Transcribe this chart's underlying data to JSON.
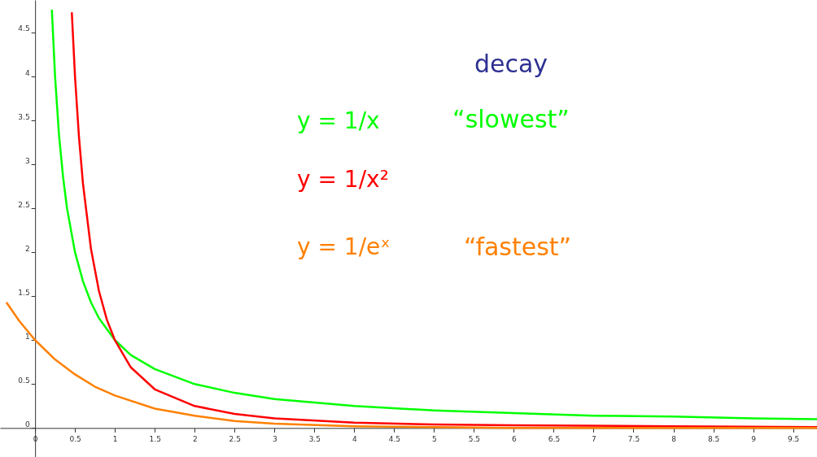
{
  "chart_data": {
    "type": "line",
    "xlim": [
      -0.44,
      9.8
    ],
    "ylim": [
      -0.33,
      4.87
    ],
    "xticks": [
      {
        "value": 0,
        "label": "0"
      },
      0.5,
      1,
      1.5,
      2,
      2.5,
      3,
      3.5,
      4,
      4.5,
      5,
      5.5,
      6,
      6.5,
      7,
      7.5,
      8,
      8.5,
      9,
      9.5
    ],
    "yticks": [
      0,
      0.5,
      1,
      1.5,
      2,
      2.5,
      3,
      3.5,
      4,
      4.5
    ],
    "grid": false,
    "line_style": "solid",
    "marker": "none",
    "series": [
      {
        "name": "y = 1/x",
        "color": "#00ff00",
        "x": [
          0.21,
          0.25,
          0.3,
          0.35,
          0.4,
          0.5,
          0.6,
          0.7,
          0.8,
          1,
          1.2,
          1.5,
          2,
          2.5,
          3,
          4,
          5,
          6,
          7,
          8,
          9,
          9.8
        ],
        "values": [
          4.76,
          4,
          3.33,
          2.86,
          2.5,
          2,
          1.67,
          1.43,
          1.25,
          1,
          0.83,
          0.67,
          0.5,
          0.4,
          0.33,
          0.25,
          0.2,
          0.17,
          0.14,
          0.13,
          0.11,
          0.1
        ]
      },
      {
        "name": "y = 1/x²",
        "color": "#ff0000",
        "x": [
          0.46,
          0.5,
          0.55,
          0.6,
          0.7,
          0.8,
          0.9,
          1,
          1.2,
          1.5,
          2,
          2.5,
          3,
          4,
          5,
          6,
          8,
          9.8
        ],
        "values": [
          4.73,
          4,
          3.31,
          2.78,
          2.04,
          1.56,
          1.23,
          1,
          0.69,
          0.44,
          0.25,
          0.16,
          0.11,
          0.06,
          0.04,
          0.03,
          0.02,
          0.01
        ]
      },
      {
        "name": "y = 1/eˣ",
        "color": "#ff8000",
        "x": [
          -0.36,
          -0.2,
          0,
          0.25,
          0.5,
          0.75,
          1,
          1.5,
          2,
          2.5,
          3,
          4,
          5,
          6,
          8,
          9.8
        ],
        "values": [
          1.43,
          1.22,
          1,
          0.78,
          0.61,
          0.47,
          0.37,
          0.22,
          0.14,
          0.08,
          0.05,
          0.02,
          0.01,
          0,
          0,
          0
        ]
      }
    ],
    "annotations": [
      "decay",
      "“slowest”",
      "“fastest”"
    ]
  }
}
